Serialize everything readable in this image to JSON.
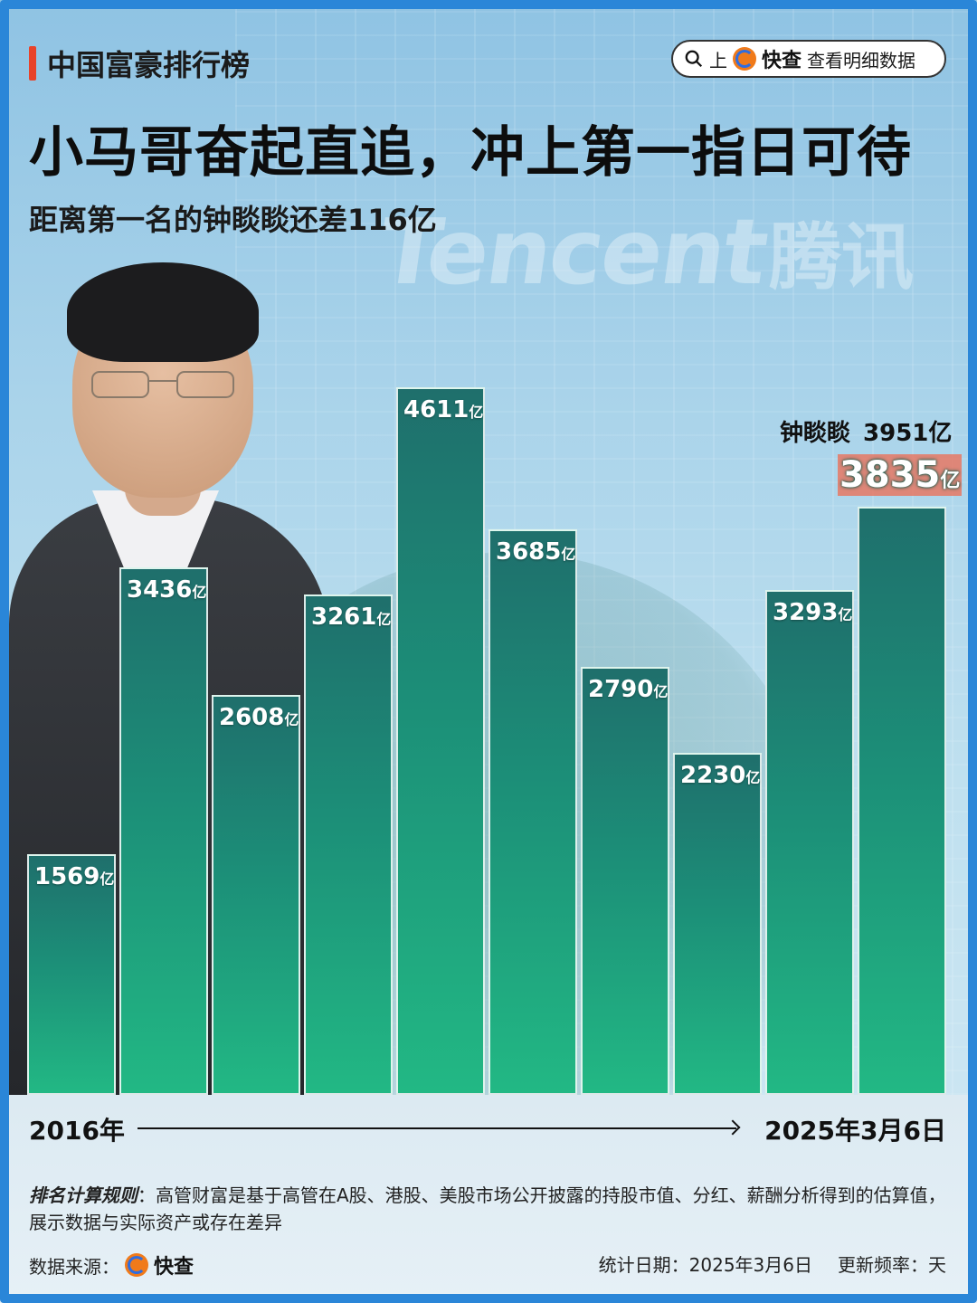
{
  "header": {
    "tag": "中国富豪排行榜",
    "search_prefix": "上",
    "brand": "快查",
    "search_suffix": "查看明细数据"
  },
  "headline": "小马哥奋起直追，冲上第一指日可待",
  "subheadline": "距离第一名的钟睒睒还差116亿",
  "background": {
    "brand_en": "Tencent",
    "brand_cn": "腾讯"
  },
  "chart_data": {
    "type": "bar",
    "unit": "亿",
    "categories": [
      "",
      "",
      "",
      "",
      "",
      "",
      "",
      "",
      "",
      ""
    ],
    "values": [
      1569,
      3436,
      2608,
      3261,
      4611,
      3685,
      2790,
      2230,
      3293,
      3835
    ],
    "value_labels": [
      "1569",
      "3436",
      "2608",
      "3261",
      "4611",
      "3685",
      "2790",
      "2230",
      "3293",
      "3835"
    ],
    "ylim": [
      0,
      4611
    ],
    "highlight_last": true,
    "reference": {
      "name": "钟睒睒",
      "value": "3951亿"
    },
    "x_start_label": "2016年",
    "x_end_label": "2025年3月6日",
    "colors": {
      "bar_top": "#1f6f6c",
      "bar_bottom": "#22b884",
      "highlight_bg": "#e67864"
    }
  },
  "footer": {
    "rule_title": "排名计算规则",
    "rule_text": "：高管财富是基于高管在A股、港股、美股市场公开披露的持股市值、分红、薪酬分析得到的估算值，展示数据与实际资产或存在差异",
    "source_label": "数据来源：",
    "source_brand": "快查",
    "stat_date": "统计日期：2025年3月6日",
    "update_freq": "更新频率：天"
  },
  "colors": {
    "accent_red": "#e8432a",
    "frame_blue": "#2a86d8"
  }
}
